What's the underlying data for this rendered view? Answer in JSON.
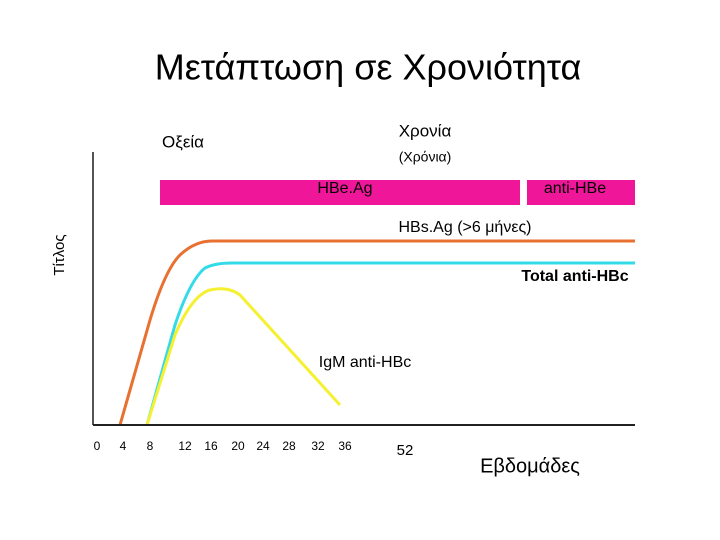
{
  "title": "Μετάπτωση σε Χρονιότητα",
  "phases": {
    "acute": "Οξεία",
    "chronic": "Χρονία",
    "chronic_note": "(Χρόνια)"
  },
  "bar": {
    "left": "HBe.Ag",
    "right": "anti-HBe"
  },
  "curves": {
    "hbsag": "HBs.Ag (>6 μήνες)",
    "total": "Total anti-HBc",
    "igm": "IgM anti-HBc"
  },
  "y_axis": {
    "label": "Τίτλος"
  },
  "x_axis": {
    "label": "Εβδομάδες",
    "ticks": [
      "0",
      "4",
      "8",
      "12",
      "16",
      "20",
      "24",
      "28",
      "32",
      "36",
      "52"
    ]
  }
}
